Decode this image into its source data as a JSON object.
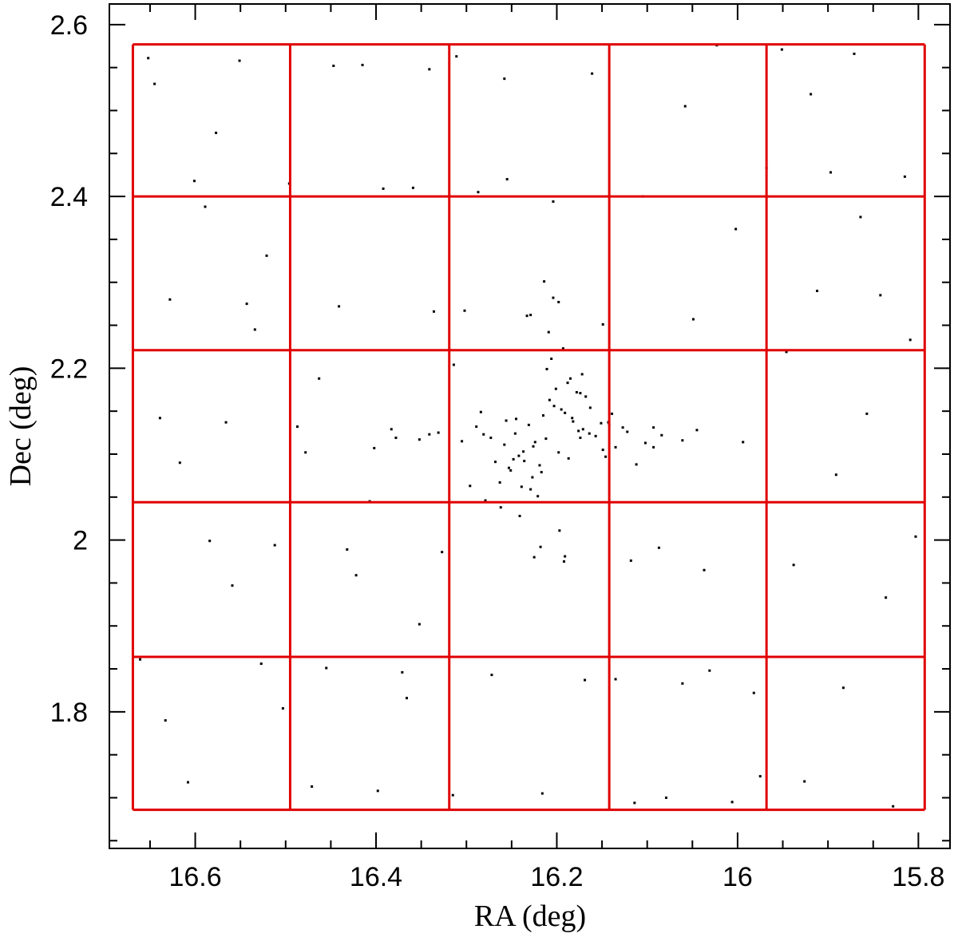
{
  "chart_data": {
    "type": "scatter",
    "xlabel": "RA (deg)",
    "ylabel": "Dec (deg)",
    "xlim": [
      16.695,
      15.765
    ],
    "ylim": [
      1.641,
      2.624
    ],
    "xticks": [
      16.6,
      16.4,
      16.2,
      16,
      15.8
    ],
    "yticks": [
      1.8,
      2,
      2.2,
      2.4,
      2.6
    ],
    "xminor": [
      16.65,
      16.55,
      16.5,
      16.45,
      16.35,
      16.3,
      16.25,
      16.15,
      16.1,
      16.05,
      15.95,
      15.9,
      15.85
    ],
    "yminor": [
      1.65,
      1.7,
      1.75,
      1.85,
      1.9,
      1.95,
      2.05,
      2.1,
      2.15,
      2.25,
      2.3,
      2.35,
      2.45,
      2.5,
      2.55
    ],
    "color": "#000000",
    "regions": {
      "color": "#e00000",
      "ra_edges": [
        16.669,
        16.495,
        16.319,
        16.142,
        15.968,
        15.793
      ],
      "dec_edges": [
        2.577,
        2.4,
        2.221,
        2.044,
        1.864,
        1.686
      ]
    },
    "x": [
      16.652,
      16.601,
      16.543,
      16.487,
      16.432,
      16.371,
      16.315,
      16.258,
      16.204,
      16.149,
      16.093,
      16.037,
      15.982,
      15.926,
      15.871,
      15.815,
      16.628,
      16.566,
      16.512,
      16.455,
      16.398,
      16.341,
      16.287,
      16.229,
      16.174,
      16.118,
      16.061,
      16.006,
      15.951,
      15.897,
      15.842,
      16.639,
      16.584,
      16.527,
      16.471,
      16.415,
      16.359,
      16.302,
      16.246,
      16.191,
      16.135,
      16.079,
      16.023,
      15.968,
      15.912,
      15.857,
      15.803,
      16.661,
      16.608,
      16.551,
      16.496,
      16.441,
      16.383,
      16.327,
      16.272,
      16.216,
      16.161,
      16.105,
      16.049,
      15.994,
      15.938,
      15.883,
      15.828,
      16.645,
      16.589,
      16.534,
      16.478,
      16.422,
      16.366,
      16.311,
      16.255,
      16.198,
      16.142,
      16.087,
      16.031,
      15.975,
      15.919,
      15.864,
      15.809,
      16.617,
      16.559,
      16.503,
      16.447,
      16.392,
      16.336,
      16.281,
      16.225,
      16.169,
      16.114,
      16.058,
      16.002,
      15.946,
      15.891,
      15.836,
      16.633,
      16.577,
      16.521,
      16.463,
      16.407,
      16.352,
      16.212,
      16.198,
      16.231,
      16.187,
      16.245,
      16.176,
      16.219,
      16.203,
      16.258,
      16.164,
      16.227,
      16.191,
      16.273,
      16.149,
      16.208,
      16.236,
      16.182,
      16.251,
      16.171,
      16.224,
      16.289,
      16.135,
      16.201,
      16.263,
      16.157,
      16.215,
      16.242,
      16.188,
      16.305,
      16.122,
      16.229,
      16.195,
      16.268,
      16.143,
      16.211,
      16.253,
      16.168,
      16.237,
      16.183,
      16.221,
      16.331,
      16.102,
      16.206,
      16.279,
      16.151,
      16.248,
      16.174,
      16.217,
      16.352,
      16.084,
      16.193,
      16.262,
      16.139,
      16.226,
      16.185,
      16.296,
      16.127,
      16.209,
      16.241,
      16.163,
      16.378,
      16.061,
      16.233,
      16.197,
      16.314,
      16.112,
      16.256,
      16.178,
      16.402,
      16.045,
      16.218,
      16.204,
      16.284,
      16.146,
      16.239,
      16.172,
      16.341,
      16.093,
      16.214,
      16.192
    ],
    "values": [
      2.561,
      2.418,
      2.275,
      2.132,
      1.989,
      1.846,
      1.703,
      2.537,
      2.394,
      2.251,
      2.108,
      1.965,
      1.822,
      1.719,
      2.566,
      2.423,
      2.28,
      2.137,
      1.994,
      1.851,
      1.708,
      2.548,
      2.405,
      2.262,
      2.119,
      1.976,
      1.833,
      1.695,
      2.571,
      2.428,
      2.285,
      2.142,
      1.999,
      1.856,
      1.713,
      2.553,
      2.41,
      2.267,
      2.124,
      1.981,
      1.838,
      1.7,
      2.576,
      2.433,
      2.29,
      2.147,
      2.004,
      1.861,
      1.718,
      2.558,
      2.415,
      2.272,
      2.129,
      1.986,
      1.843,
      1.705,
      2.543,
      2.4,
      2.257,
      2.114,
      1.971,
      1.828,
      1.69,
      2.531,
      2.388,
      2.245,
      2.102,
      1.959,
      1.816,
      2.563,
      2.42,
      2.277,
      2.134,
      1.991,
      1.848,
      1.725,
      2.519,
      2.376,
      2.233,
      2.09,
      1.947,
      1.804,
      2.552,
      2.409,
      2.266,
      2.123,
      1.98,
      1.837,
      1.694,
      2.505,
      2.362,
      2.219,
      2.076,
      1.933,
      1.79,
      2.474,
      2.331,
      2.188,
      2.045,
      1.902,
      2.118,
      2.102,
      2.134,
      2.095,
      2.141,
      2.127,
      2.087,
      2.156,
      2.111,
      2.124,
      2.073,
      2.148,
      2.119,
      2.105,
      2.163,
      2.092,
      2.138,
      2.081,
      2.129,
      2.114,
      2.132,
      2.108,
      2.176,
      2.067,
      2.121,
      2.145,
      2.098,
      2.183,
      2.115,
      2.126,
      2.059,
      2.152,
      2.091,
      2.137,
      2.199,
      2.084,
      2.167,
      2.103,
      2.142,
      2.051,
      2.125,
      2.113,
      2.211,
      2.046,
      2.136,
      2.094,
      2.171,
      2.079,
      2.117,
      2.122,
      2.223,
      2.038,
      2.147,
      2.109,
      2.188,
      2.063,
      2.131,
      2.242,
      2.028,
      2.154,
      2.119,
      2.116,
      2.261,
      2.011,
      2.204,
      2.088,
      2.139,
      2.172,
      2.107,
      2.128,
      1.992,
      2.282,
      2.149,
      2.097,
      2.062,
      2.193,
      2.123,
      2.131,
      2.301,
      1.975
    ]
  }
}
